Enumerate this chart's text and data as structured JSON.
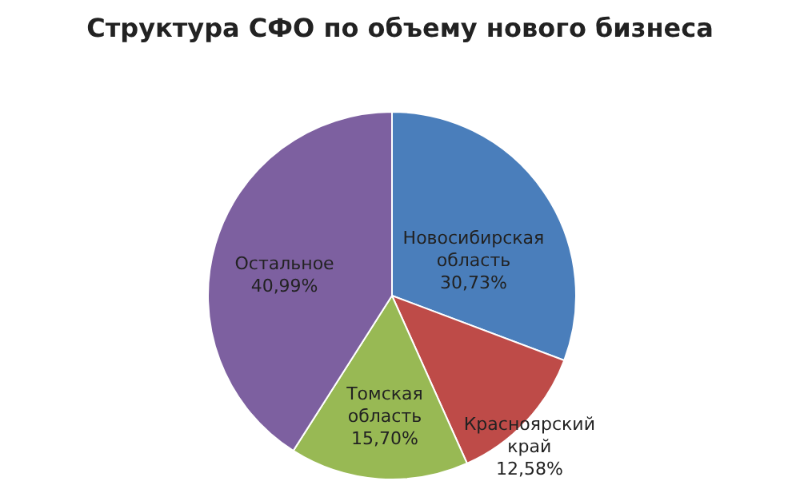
{
  "chart_data": {
    "type": "pie",
    "title": "Структура СФО по объему нового бизнеса",
    "categories": [
      "Новосибирская область",
      "Красноярский край",
      "Томская область",
      "Остальное"
    ],
    "values": [
      30.73,
      12.58,
      15.7,
      40.99
    ],
    "value_labels": [
      "30,73%",
      "12,58%",
      "15,70%",
      "40,99%"
    ],
    "colors": [
      "#4a7ebb",
      "#be4b48",
      "#98b954",
      "#7d60a0"
    ],
    "legend": false
  }
}
